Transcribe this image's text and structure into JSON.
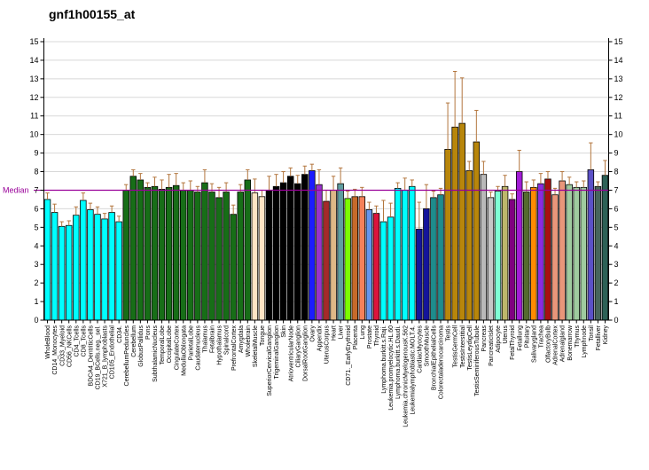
{
  "title": "gnf1h00155_at",
  "chart_data": {
    "type": "bar",
    "title": "gnf1h00155_at",
    "xlabel": "",
    "ylabel": "",
    "ylim": [
      0,
      15
    ],
    "ytick_step": 1,
    "grid": "horizontal",
    "legend_position": "none",
    "median": {
      "value": 7,
      "label": "Median",
      "color": "#990099"
    },
    "error_bar_color": "#B3763E",
    "axis_color": "#000000",
    "gridline_color": "#D8D8D8",
    "categories": [
      "WholeBlood",
      "CD14_Monocytes",
      "CD33_Myeloid",
      "CD56_NKCells",
      "CD4_Tcells",
      "CD8_Tcells",
      "BDCA4_DentriticCells",
      "CD19_BCells.neg._sel.",
      "X721_B_lymphoblasts",
      "CD105_Endothelial",
      "CD34.",
      "CerebellumPeduncles",
      "Cerebellum",
      "GlobusPallidus",
      "Pons",
      "SubthalamicNucleus",
      "TemporalLobe",
      "OccipitalLobe",
      "CingulateCortex",
      "MedullaOblongata",
      "ParietalLobe",
      "Caudatenucleus",
      "Thalamus",
      "Fetalbrain",
      "Hypothalamus",
      "Spinalcord",
      "PrefrontalCortex",
      "Amygdala",
      "Wholebrain",
      "SkeletalMuscle",
      "Tongue",
      "SuperiorCervicalGanglion",
      "TrigeminalGanglion",
      "Skin",
      "AtrioventricularNode",
      "CiliaryGanglion",
      "DorsalRootGanglion",
      "Ovary",
      "Appendix",
      "UterusCorpus",
      "Heart",
      "Liver",
      "CD71._EarlyErythroid",
      "Placenta",
      "Lung",
      "Prostate",
      "Thyroid",
      "Lymphoma.burkitt.s.Raji.",
      "Leukemia.promyelocytic.HL.60",
      "Lymphoma.burkitt.s.Daudi.",
      "Leukemia.chronicMyelogenousK.562",
      "Leukemialymphoblastic.MOLT.4.",
      "CardiacMyocytes",
      "SmoothMuscle",
      "BronchialEpithelialCells",
      "Colorectaladenocarcinoma",
      "Testis",
      "TestisGermCell",
      "TestisInterstitial",
      "TestisLeydigCell",
      "TestisSeminiferousTubule",
      "Pancreas",
      "PancreaticIslet",
      "Adipocyte",
      "Uterus",
      "FetalThyroid",
      "Fetallung",
      "Pituitary",
      "Salivarygland",
      "Trachea",
      "OlfactoryBulb",
      "AdrenalCortex",
      "Adrenalgland",
      "Bonemarrow",
      "Thymus",
      "Lymphnode",
      "Tonsil",
      "Fetalliver",
      "Kidney"
    ],
    "values": [
      6.5,
      5.8,
      5.05,
      5.1,
      5.65,
      6.45,
      5.95,
      5.7,
      5.45,
      5.8,
      5.3,
      7.0,
      7.75,
      7.55,
      7.15,
      7.2,
      7.05,
      7.15,
      7.25,
      7.0,
      7.0,
      6.9,
      7.4,
      6.9,
      6.6,
      6.9,
      5.7,
      6.9,
      7.55,
      6.85,
      6.65,
      7.0,
      7.2,
      7.4,
      7.75,
      7.35,
      7.85,
      8.05,
      7.3,
      6.4,
      7.0,
      7.35,
      6.55,
      6.65,
      6.65,
      5.95,
      5.75,
      5.3,
      5.55,
      7.1,
      7.0,
      7.2,
      4.9,
      6.0,
      6.6,
      6.75,
      9.2,
      10.4,
      10.6,
      8.05,
      9.6,
      7.85,
      6.6,
      6.95,
      7.2,
      6.5,
      8.0,
      6.9,
      7.15,
      7.35,
      7.6,
      6.75,
      7.5,
      7.3,
      7.15,
      7.15,
      8.1,
      7.2,
      7.8
    ],
    "errors_top": [
      6.85,
      6.25,
      5.3,
      5.35,
      6.1,
      6.85,
      6.3,
      6.1,
      5.75,
      6.15,
      5.6,
      7.3,
      8.1,
      7.9,
      7.4,
      7.7,
      7.55,
      7.85,
      7.9,
      7.4,
      7.5,
      7.2,
      8.1,
      7.35,
      7.15,
      7.4,
      6.2,
      7.3,
      8.1,
      7.6,
      7.0,
      7.75,
      7.85,
      8.0,
      8.2,
      7.8,
      8.3,
      8.4,
      8.1,
      7.0,
      7.75,
      8.2,
      6.95,
      7.05,
      7.15,
      6.35,
      6.15,
      6.45,
      6.3,
      7.4,
      7.65,
      7.55,
      6.35,
      7.3,
      6.95,
      7.1,
      11.7,
      13.4,
      13.05,
      8.55,
      11.3,
      8.55,
      6.9,
      7.2,
      7.8,
      6.8,
      9.15,
      7.45,
      7.55,
      7.9,
      8.0,
      7.1,
      8.0,
      7.7,
      7.45,
      7.5,
      9.55,
      7.45,
      8.6
    ],
    "bar_colors": [
      "#00FFFF",
      "#00FFFF",
      "#00FFFF",
      "#00FFFF",
      "#00FFFF",
      "#00FFFF",
      "#00FFFF",
      "#00FFFF",
      "#00FFFF",
      "#00FFFF",
      "#00FFFF",
      "#176E17",
      "#176E17",
      "#176E17",
      "#176E17",
      "#176E17",
      "#176E17",
      "#176E17",
      "#176E17",
      "#176E17",
      "#176E17",
      "#176E17",
      "#176E17",
      "#176E17",
      "#176E17",
      "#176E17",
      "#176E17",
      "#176E17",
      "#176E17",
      "#FFE4C4",
      "#FFE4C4",
      "#000000",
      "#000000",
      "#000000",
      "#000000",
      "#000000",
      "#000000",
      "#1C1CFF",
      "#9932CC",
      "#A52A2A",
      "#DEB887",
      "#5F9EA0",
      "#7CFC00",
      "#C66A2A",
      "#F4815A",
      "#6495ED",
      "#DC143C",
      "#00FFFF",
      "#00FFFF",
      "#00FFFF",
      "#00FFFF",
      "#00FFFF",
      "#14149B",
      "#14149B",
      "#1E8C8C",
      "#1E8C8C",
      "#B8860B",
      "#B8860B",
      "#B8860B",
      "#B8860B",
      "#B8860B",
      "#B9B9B9",
      "#C6C6C6",
      "#7FFFD4",
      "#BDB76B",
      "#800080",
      "#A21CD6",
      "#556B2F",
      "#FF8C00",
      "#8A2BE2",
      "#A81010",
      "#E9967A",
      "#E9967A",
      "#9FCB9F",
      "#9FCB9F",
      "#9FCB9F",
      "#5B51C7",
      "#47655B",
      "#2D6156"
    ]
  }
}
